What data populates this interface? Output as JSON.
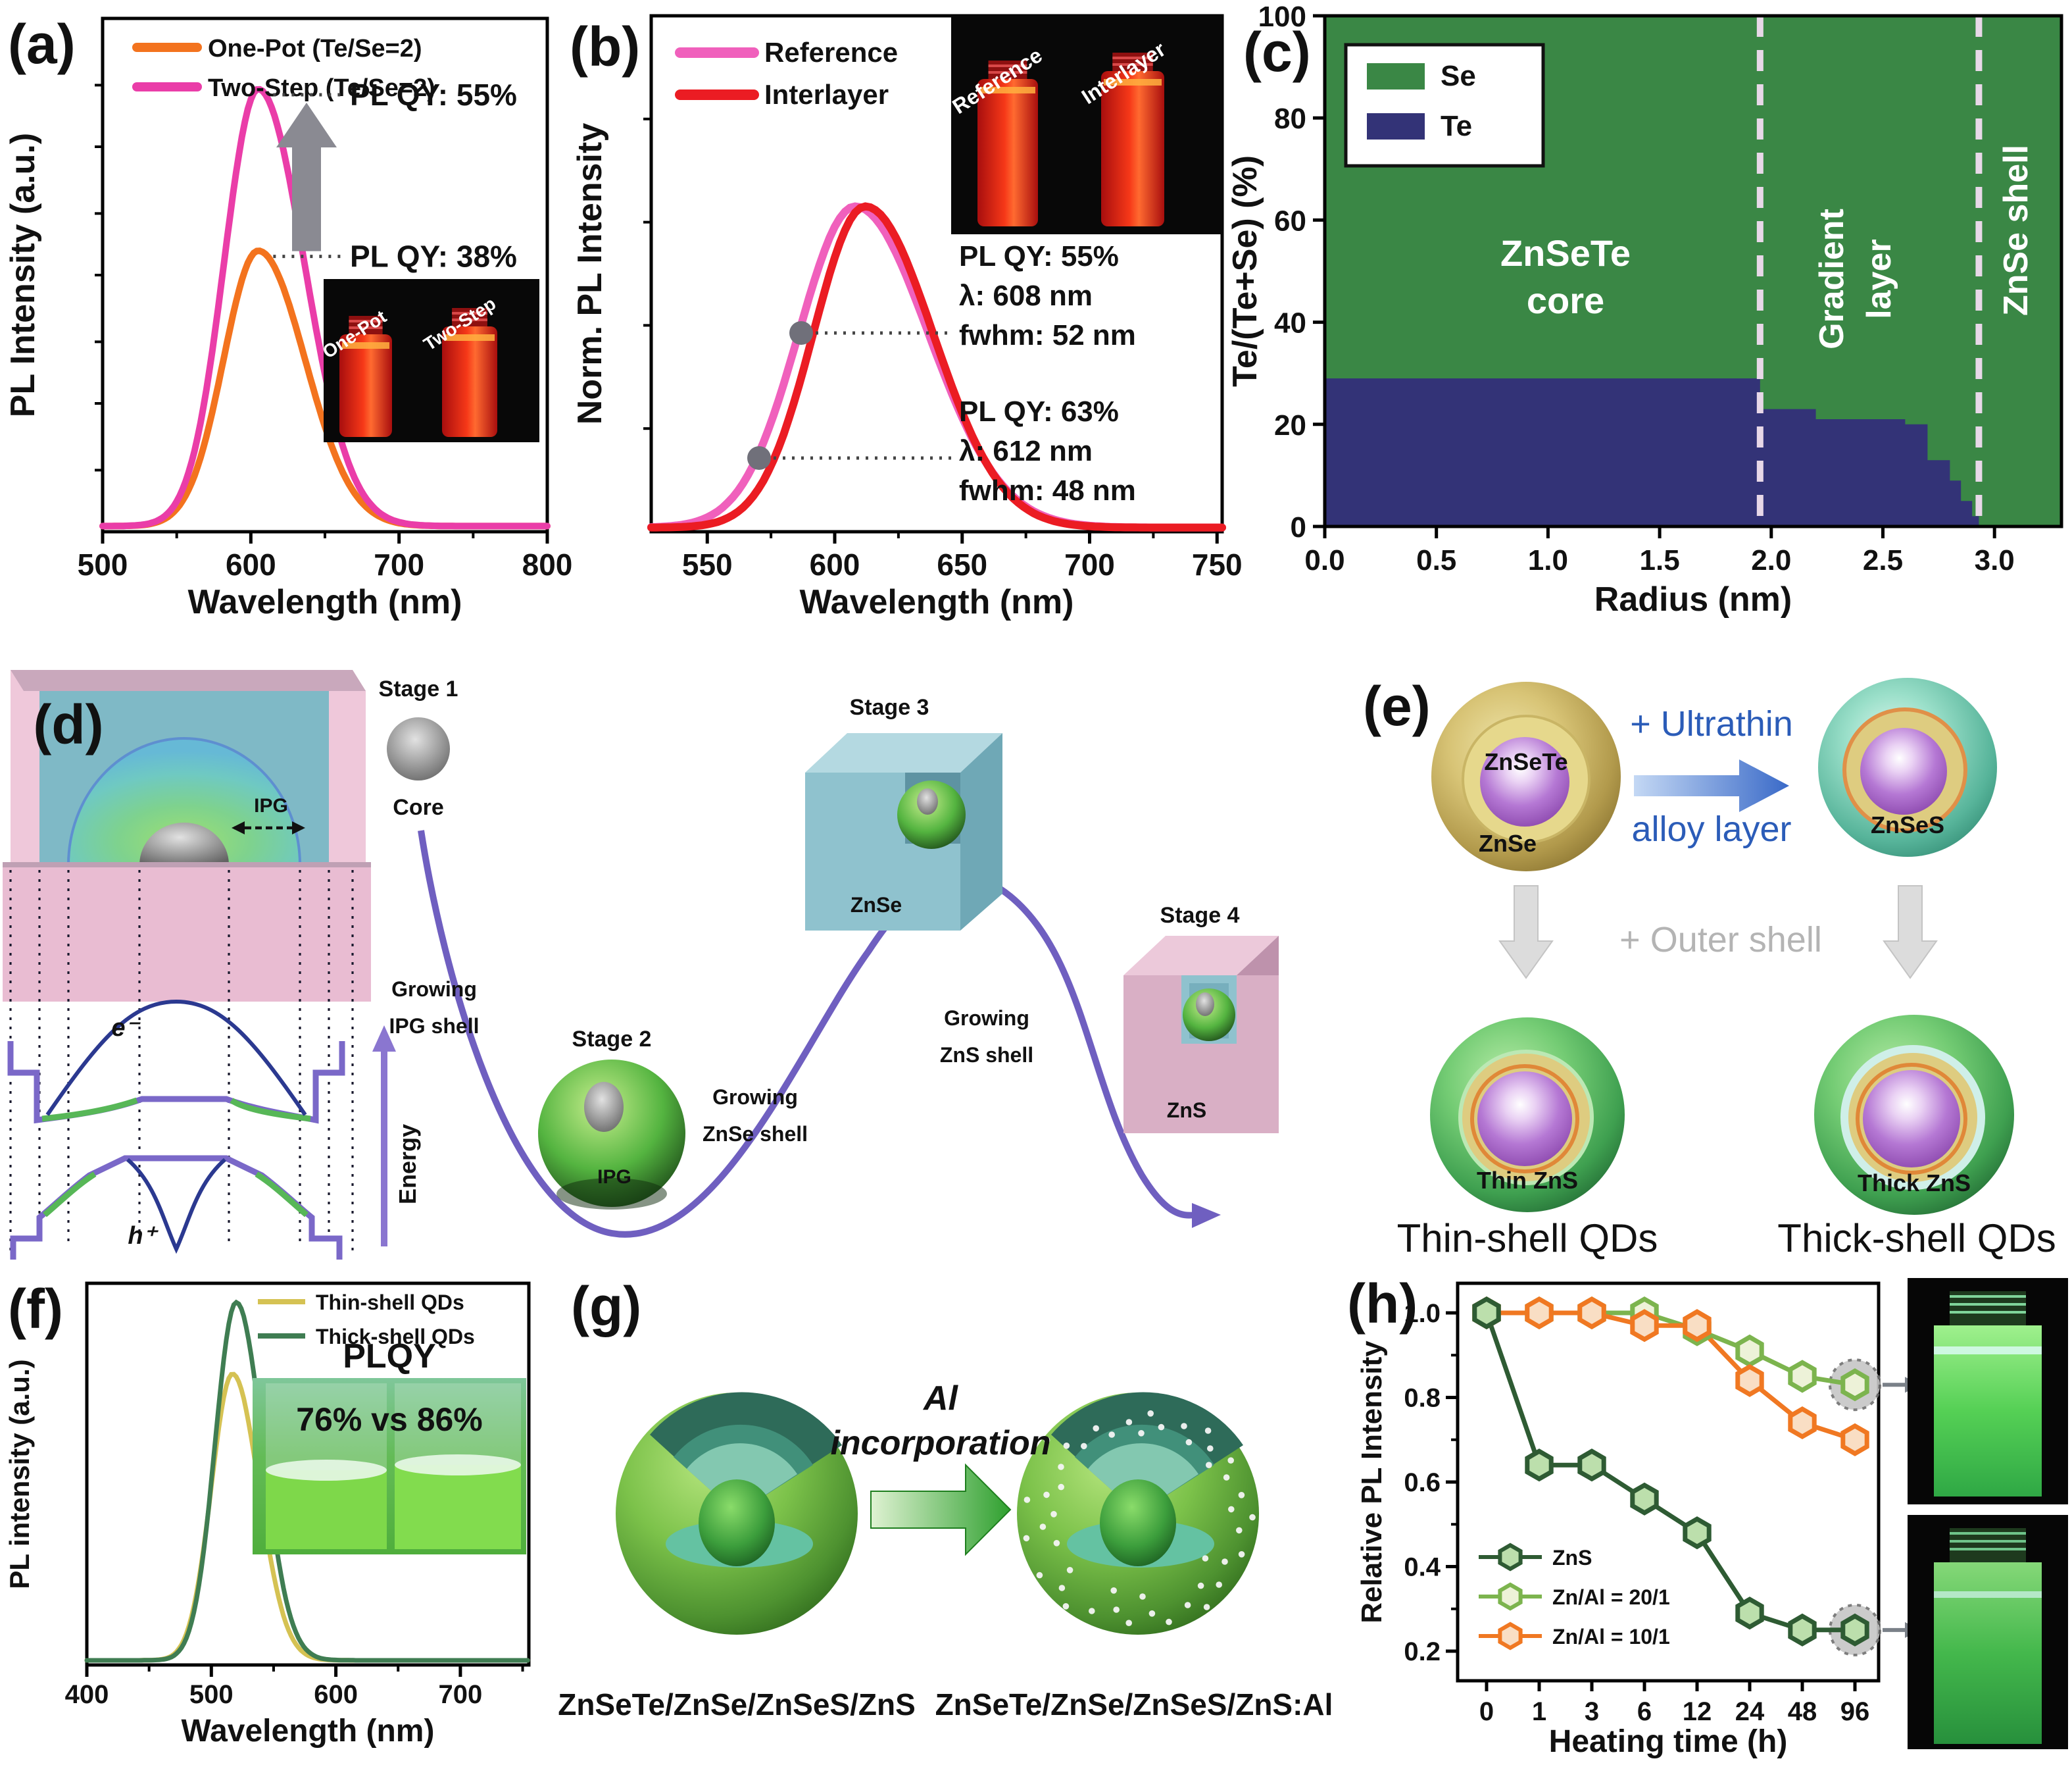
{
  "panels": {
    "a": {
      "label": "(a)",
      "vial_labels": [
        "One-Pot",
        "Two-Step"
      ],
      "qy_high": "PL QY: 55%",
      "qy_low": "PL QY: 38%"
    },
    "b": {
      "label": "(b)",
      "vial_labels": [
        "Reference",
        "Interlayer"
      ],
      "ann1": [
        "PL QY: 55%",
        "λ: 608 nm",
        "fwhm: 52 nm"
      ],
      "ann2": [
        "PL QY: 63%",
        "λ: 612 nm",
        "fwhm: 48 nm"
      ]
    },
    "c": {
      "label": "(c)",
      "region_labels": {
        "core1": "ZnSeTe",
        "core2": "core",
        "grad1": "Gradient",
        "grad2": "layer",
        "shell": "ZnSe shell"
      }
    },
    "d": {
      "label": "(d)",
      "stage1": "Stage 1",
      "stage1_caption": "Core",
      "stage2": "Stage 2",
      "stage2_caption": "IPG",
      "stage3": "Stage 3",
      "stage3_caption": "ZnSe",
      "stage4": "Stage 4",
      "stage4_caption": "ZnS",
      "trans1": [
        "Growing",
        "IPG shell"
      ],
      "trans2": [
        "Growing",
        "ZnSe shell"
      ],
      "trans3": [
        "Growing",
        "ZnS shell"
      ],
      "ipg_label": "IPG",
      "electron": "e⁻",
      "hole": "h⁺",
      "energy": "Energy"
    },
    "e": {
      "label": "(e)",
      "core1": "ZnSeTe",
      "shell1": "ZnSe",
      "arrow1": [
        "+ Ultrathin",
        "alloy layer"
      ],
      "sphere2": "ZnSeS",
      "outer": "+ Outer shell",
      "thin": "Thin ZnS",
      "thick": "Thick ZnS",
      "captions": [
        "Thin-shell QDs",
        "Thick-shell QDs"
      ]
    },
    "f": {
      "label": "(f)",
      "inset_title": "PLQY",
      "inset_value": "76% vs 86%"
    },
    "g": {
      "label": "(g)",
      "arrow": [
        "Al",
        "incorporation"
      ],
      "left_caption": "ZnSeTe/ZnSe/ZnSeS/ZnS",
      "right_caption": "ZnSeTe/ZnSe/ZnSeS/ZnS:Al"
    },
    "h": {
      "label": "(h)"
    }
  },
  "chart_data": [
    {
      "type": "line",
      "panel": "a",
      "xlabel": "Wavelength (nm)",
      "ylabel": "PL Intensity (a.u.)",
      "xlim": [
        500,
        800
      ],
      "xticks": [
        500,
        600,
        700,
        800
      ],
      "series": [
        {
          "name": "One-Pot (Te/Se=2)",
          "color": "#F3731E",
          "peak": 605,
          "fwhm": 55,
          "height": 0.63
        },
        {
          "name": "Two-Step (Te/Se=2)",
          "color": "#EA3DA8",
          "peak": 605,
          "fwhm": 54,
          "height": 1.0
        }
      ],
      "annotations": [
        {
          "text": "PL QY: 55%",
          "level": 1.0
        },
        {
          "text": "PL QY: 38%",
          "level": 0.63
        }
      ]
    },
    {
      "type": "line",
      "panel": "b",
      "xlabel": "Wavelength (nm)",
      "ylabel": "Norm. PL Intensity",
      "xlim": [
        528,
        752
      ],
      "xticks": [
        550,
        600,
        650,
        700,
        750
      ],
      "series": [
        {
          "name": "Reference",
          "color": "#F060BC",
          "peak": 608,
          "fwhm": 52,
          "height": 1.0
        },
        {
          "name": "Interlayer",
          "color": "#EB1C23",
          "peak": 612,
          "fwhm": 48,
          "height": 1.0
        }
      ]
    },
    {
      "type": "area",
      "panel": "c",
      "xlabel": "Radius (nm)",
      "ylabel": "Te/(Te+Se) (%)",
      "xlim": [
        0,
        3.3
      ],
      "ylim": [
        0,
        100
      ],
      "xticks": [
        0,
        0.5,
        1,
        1.5,
        2,
        2.5,
        3
      ],
      "yticks": [
        0,
        20,
        40,
        60,
        80,
        100
      ],
      "legend": [
        {
          "label": "Se",
          "color": "#3A8745"
        },
        {
          "label": "Te",
          "color": "#333377"
        }
      ],
      "te_profile": [
        [
          0,
          29
        ],
        [
          1.95,
          23
        ],
        [
          2.2,
          21
        ],
        [
          2.6,
          20
        ],
        [
          2.7,
          13
        ],
        [
          2.8,
          9
        ],
        [
          2.85,
          5
        ],
        [
          2.9,
          2
        ],
        [
          2.93,
          0
        ]
      ],
      "boundaries": [
        1.95,
        2.93
      ]
    },
    {
      "type": "line",
      "panel": "f",
      "xlabel": "Wavelength (nm)",
      "ylabel": "PL intensity (a.u.)",
      "xlim": [
        400,
        755
      ],
      "xticks": [
        400,
        500,
        600,
        700
      ],
      "series": [
        {
          "name": "Thin-shell QDs",
          "color": "#D5C253",
          "peak": 517,
          "fwhm": 40,
          "height": 0.8
        },
        {
          "name": "Thick-shell QDs",
          "color": "#3F7D52",
          "peak": 520,
          "fwhm": 40,
          "height": 1.0
        }
      ]
    },
    {
      "type": "scatter-line",
      "panel": "h",
      "xlabel": "Heating time (h)",
      "ylabel": "Relative PL Intensity",
      "categories": [
        "0",
        "1",
        "3",
        "6",
        "12",
        "24",
        "48",
        "96"
      ],
      "yticks": [
        0.2,
        0.4,
        0.6,
        0.8,
        1.0
      ],
      "series": [
        {
          "name": "ZnS",
          "color": "#2E5B33",
          "fill": "#BCDFAC",
          "values": [
            1.0,
            0.64,
            0.64,
            0.56,
            0.48,
            0.29,
            0.25,
            0.25
          ]
        },
        {
          "name": "Zn/Al = 20/1",
          "color": "#7CB44E",
          "fill": "#EDF2D8",
          "values": [
            1.0,
            1.0,
            1.0,
            1.0,
            0.96,
            0.91,
            0.85,
            0.83
          ]
        },
        {
          "name": "Zn/Al = 10/1",
          "color": "#F07822",
          "fill": "#F9DEC4",
          "values": [
            1.0,
            1.0,
            1.0,
            0.97,
            0.97,
            0.84,
            0.74,
            0.7
          ]
        }
      ],
      "highlights": [
        {
          "series": 0,
          "index": 7
        },
        {
          "series": 1,
          "index": 7
        }
      ]
    }
  ]
}
